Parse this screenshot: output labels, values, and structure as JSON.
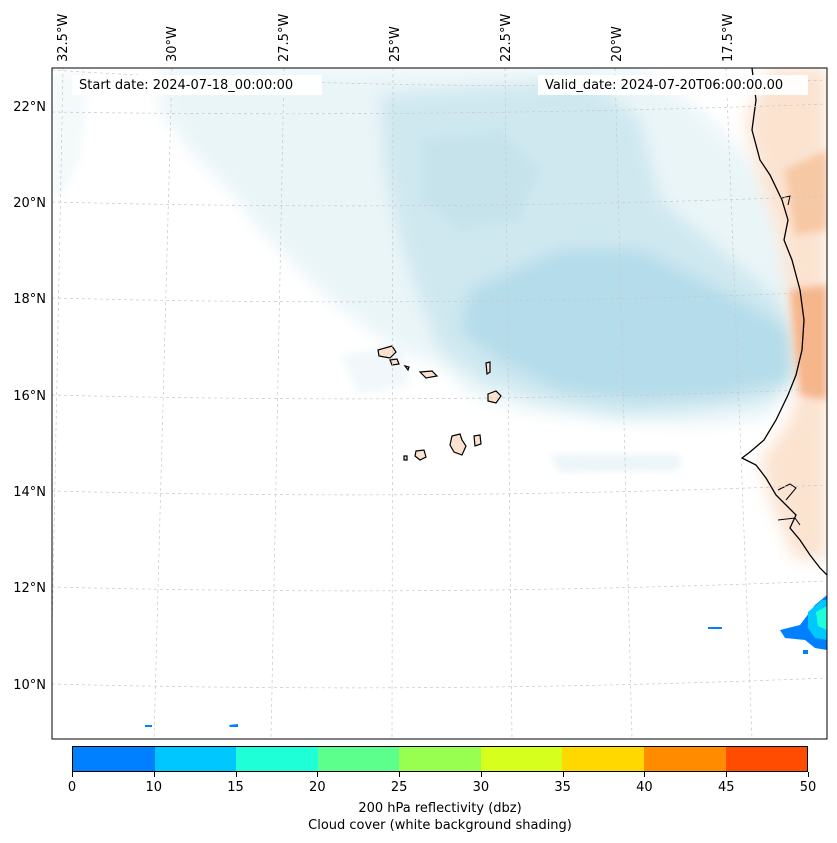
{
  "map": {
    "start_label": "Start date: 2024-07-18_00:00:00",
    "valid_label": "Valid_date: 2024-07-20T06:00:00.00",
    "lon_labels": [
      "32.5°W",
      "30°W",
      "27.5°W",
      "25°W",
      "22.5°W",
      "20°W",
      "17.5°W"
    ],
    "lat_labels": [
      "22°N",
      "20°N",
      "18°N",
      "16°N",
      "14°N",
      "12°N",
      "10°N"
    ],
    "layers": [
      "Cloud cover shading",
      "200 hPa reflectivity",
      "Coastlines",
      "Gridlines"
    ],
    "region": "Eastern tropical Atlantic / West Africa coast, Cape Verde Islands"
  },
  "colorbar": {
    "tick_labels": [
      "0",
      "10",
      "15",
      "20",
      "25",
      "30",
      "35",
      "40",
      "45",
      "50"
    ],
    "colors": [
      "#0080ff",
      "#00c8ff",
      "#1effd8",
      "#5cff8c",
      "#98ff50",
      "#d6ff1e",
      "#ffd800",
      "#ff8c00",
      "#ff4c00"
    ],
    "title_line1": "200 hPa reflectivity (dbz)",
    "title_line2": "Cloud cover (white background shading)"
  }
}
